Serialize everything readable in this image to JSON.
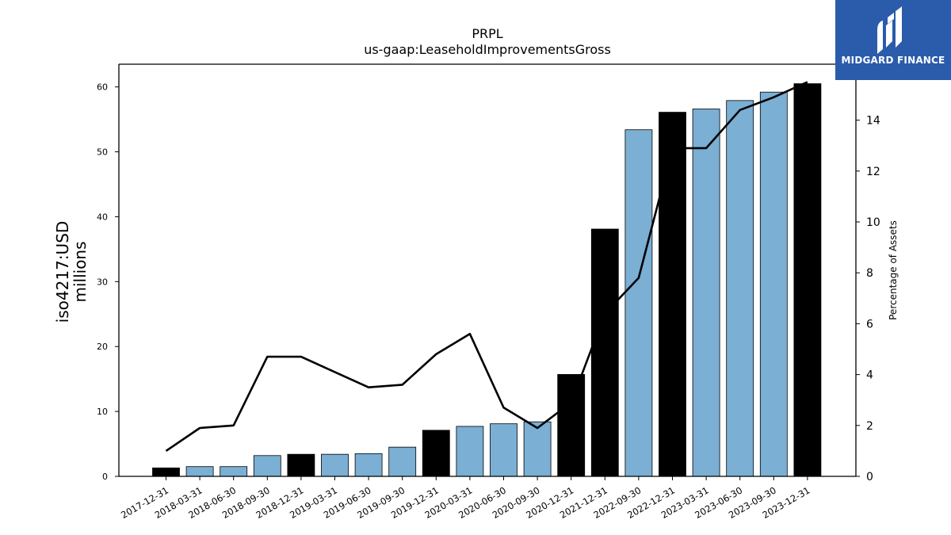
{
  "brand": {
    "name": "MIDGARD FINANCE",
    "color": "#2b5bab",
    "icon": "midgard-logo-icon"
  },
  "chart_data": {
    "type": "bar",
    "title": "PRPL",
    "subtitle": "us-gaap:LeaseholdImprovementsGross",
    "ylabel": "iso4217:USD",
    "ylabel_unit": "millions",
    "y2label": "Percentage of Assets",
    "categories": [
      "2017-12-31",
      "2018-03-31",
      "2018-06-30",
      "2018-09-30",
      "2018-12-31",
      "2019-03-31",
      "2019-06-30",
      "2019-09-30",
      "2019-12-31",
      "2020-03-31",
      "2020-06-30",
      "2020-09-30",
      "2020-12-31",
      "2021-12-31",
      "2022-09-30",
      "2022-12-31",
      "2023-03-31",
      "2023-06-30",
      "2023-09-30",
      "2023-12-31"
    ],
    "series": [
      {
        "values": [
          1.3,
          1.5,
          1.5,
          3.2,
          3.4,
          3.4,
          3.5,
          4.5,
          7.1,
          7.7,
          8.1,
          8.4,
          15.7,
          38.1,
          53.4,
          56.1,
          56.6,
          57.9,
          59.2,
          60.5
        ],
        "axis": "left"
      },
      {
        "values": [
          1.0,
          1.9,
          2.0,
          4.7,
          4.7,
          4.1,
          3.5,
          3.6,
          4.8,
          5.6,
          2.7,
          1.9,
          2.9,
          6.4,
          7.8,
          12.9,
          12.9,
          14.4,
          14.9,
          15.5
        ],
        "axis": "right",
        "line_color": "#000000"
      }
    ],
    "bar_colors": {
      "annual": "#000000",
      "quarterly": "#7bafd4"
    },
    "bar_kind": [
      "annual",
      "quarterly",
      "quarterly",
      "quarterly",
      "annual",
      "quarterly",
      "quarterly",
      "quarterly",
      "annual",
      "quarterly",
      "quarterly",
      "quarterly",
      "annual",
      "annual",
      "quarterly",
      "annual",
      "quarterly",
      "quarterly",
      "quarterly",
      "annual"
    ],
    "ylim": [
      0,
      63.5
    ],
    "y2lim": [
      0,
      16.2
    ],
    "yticks": [
      0,
      10,
      20,
      30,
      40,
      50,
      60
    ],
    "y2ticks": [
      0,
      2,
      4,
      6,
      8,
      10,
      12,
      14
    ],
    "grid": false,
    "legend": "none"
  }
}
